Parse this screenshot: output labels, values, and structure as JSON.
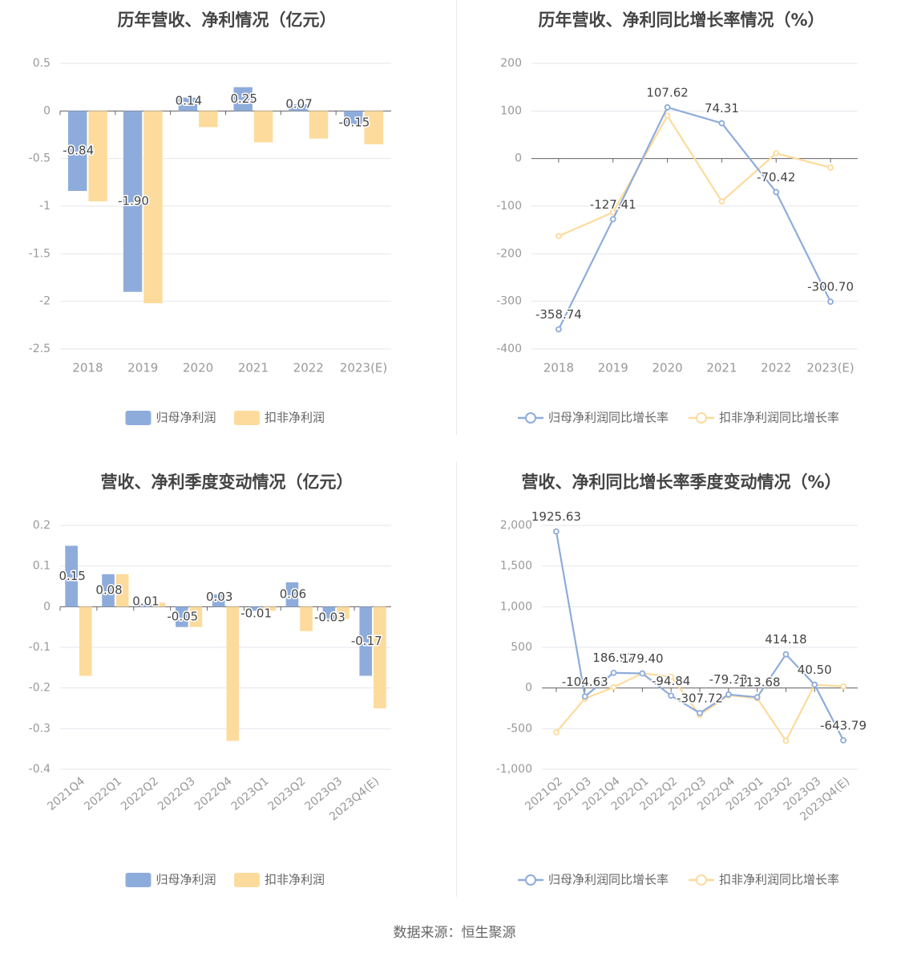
{
  "source": "数据来源：恒生聚源",
  "colors": {
    "blue": "#8eacdb",
    "yellow": "#fddb9c",
    "grid": "#e6e6ee",
    "axis": "#666666",
    "tick_text": "#999999",
    "label_text": "#444444",
    "title_text": "#444444"
  },
  "chart_data": [
    {
      "id": "annual-profit",
      "type": "bar",
      "title": "历年营收、净利情况（亿元）",
      "categories": [
        "2018",
        "2019",
        "2020",
        "2021",
        "2022",
        "2023(E)"
      ],
      "y_ticks": [
        "0.5",
        "0",
        "-0.5",
        "-1",
        "-1.5",
        "-2",
        "-2.5"
      ],
      "ylim": [
        -2.5,
        0.5
      ],
      "grid": true,
      "legend_position": "bottom",
      "series": [
        {
          "name": "归母净利润",
          "color": "#8eacdb",
          "values": [
            -0.84,
            -1.9,
            0.14,
            0.25,
            0.07,
            -0.15
          ],
          "labels": [
            "-0.84",
            "-1.90",
            "0.14",
            "0.25",
            "0.07",
            "-0.15"
          ]
        },
        {
          "name": "扣非净利润",
          "color": "#fddb9c",
          "values": [
            -0.95,
            -2.02,
            -0.17,
            -0.33,
            -0.29,
            -0.35
          ],
          "labels": []
        }
      ]
    },
    {
      "id": "annual-growth",
      "type": "line",
      "title": "历年营收、净利同比增长率情况（%）",
      "categories": [
        "2018",
        "2019",
        "2020",
        "2021",
        "2022",
        "2023(E)"
      ],
      "y_ticks": [
        "200",
        "100",
        "0",
        "-100",
        "-200",
        "-300",
        "-400"
      ],
      "ylim": [
        -400,
        200
      ],
      "grid": true,
      "legend_position": "bottom",
      "series": [
        {
          "name": "归母净利润同比增长率",
          "color": "#8eacdb",
          "values": [
            -358.74,
            -127.41,
            107.62,
            74.31,
            -70.42,
            -300.7
          ],
          "labels": [
            "-358.74",
            "-127.41",
            "107.62",
            "74.31",
            "-70.42",
            "-300.70"
          ]
        },
        {
          "name": "扣非净利润同比增长率",
          "color": "#fddb9c",
          "values": [
            -163,
            -113,
            90,
            -90,
            11,
            -19
          ],
          "labels": []
        }
      ]
    },
    {
      "id": "quarterly-profit",
      "type": "bar",
      "title": "营收、净利季度变动情况（亿元）",
      "categories": [
        "2021Q4",
        "2022Q1",
        "2022Q2",
        "2022Q3",
        "2022Q4",
        "2023Q1",
        "2023Q2",
        "2023Q3",
        "2023Q4(E)"
      ],
      "y_ticks": [
        "0.2",
        "0.1",
        "0",
        "-0.1",
        "-0.2",
        "-0.3",
        "-0.4"
      ],
      "ylim": [
        -0.4,
        0.2
      ],
      "grid": true,
      "legend_position": "bottom",
      "series": [
        {
          "name": "归母净利润",
          "color": "#8eacdb",
          "values": [
            0.15,
            0.08,
            0.01,
            -0.05,
            0.03,
            -0.01,
            0.06,
            -0.03,
            -0.17
          ],
          "labels": [
            "0.15",
            "0.08",
            "0.01",
            "-0.05",
            "0.03",
            "-0.01",
            "0.06",
            "-0.03",
            "-0.17"
          ]
        },
        {
          "name": "扣非净利润",
          "color": "#fddb9c",
          "values": [
            -0.17,
            0.08,
            0.01,
            -0.05,
            -0.33,
            -0.01,
            -0.06,
            -0.03,
            -0.25
          ],
          "labels": []
        }
      ]
    },
    {
      "id": "quarterly-growth",
      "type": "line",
      "title": "营收、净利同比增长率季度变动情况（%）",
      "categories": [
        "2021Q2",
        "2021Q3",
        "2021Q4",
        "2022Q1",
        "2022Q2",
        "2022Q3",
        "2022Q4",
        "2023Q1",
        "2023Q2",
        "2023Q3",
        "2023Q4(E)"
      ],
      "y_ticks": [
        "2,000",
        "1,500",
        "1,000",
        "500",
        "0",
        "-500",
        "-1,000"
      ],
      "ylim": [
        -1000,
        2000
      ],
      "grid": true,
      "legend_position": "bottom",
      "series": [
        {
          "name": "归母净利润同比增长率",
          "color": "#8eacdb",
          "values": [
            1925.63,
            -104.63,
            186.92,
            179.4,
            -94.84,
            -307.72,
            -79.23,
            -113.68,
            414.18,
            40.5,
            -643.79
          ],
          "labels": [
            "1925.63",
            "-104.63",
            "186.92",
            "179.40",
            "-94.84",
            "-307.72",
            "-79.23",
            "-113.68",
            "414.18",
            "40.50",
            "-643.79"
          ]
        },
        {
          "name": "扣非净利润同比增长率",
          "color": "#fddb9c",
          "values": [
            -545,
            -130,
            10,
            180,
            140,
            -330,
            -90,
            -125,
            -650,
            40,
            20
          ],
          "labels": []
        }
      ]
    }
  ]
}
